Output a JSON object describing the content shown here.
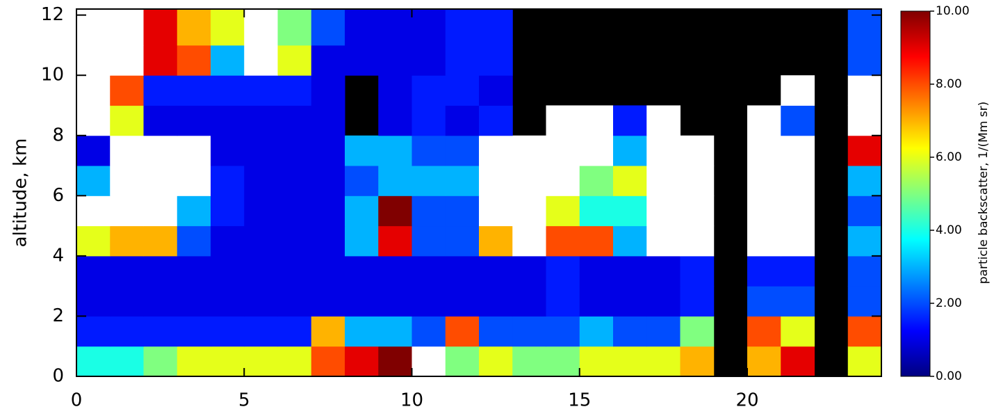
{
  "chart_data": {
    "type": "heatmap",
    "y_label": "altitude, km",
    "colorbar_label": "particle backscatter, 1/(Mm sr)",
    "xbins": [
      0,
      1,
      2,
      3,
      4,
      5,
      6,
      7,
      8,
      9,
      10,
      11,
      12,
      13,
      14,
      15,
      16,
      17,
      18,
      19,
      20,
      21,
      22,
      23,
      24
    ],
    "ybins": [
      0,
      1,
      2,
      3,
      4,
      5,
      6,
      7,
      8,
      9,
      10,
      11,
      12.2
    ],
    "z": [
      [
        4,
        4,
        5,
        6,
        6,
        6,
        6,
        8,
        9,
        10,
        12,
        5,
        6,
        5,
        5,
        6,
        6,
        6,
        7,
        null,
        7,
        9,
        null,
        6
      ],
      [
        1.5,
        1.5,
        1.5,
        1.5,
        1.5,
        1.5,
        1.5,
        7,
        3,
        3,
        2,
        8,
        2,
        2,
        2,
        3,
        2,
        2,
        5,
        null,
        8,
        6,
        null,
        8
      ],
      [
        1,
        1,
        1,
        1,
        1,
        1,
        1,
        1,
        1,
        1,
        1,
        1,
        1,
        1,
        1.5,
        1,
        1,
        1,
        1.5,
        null,
        2,
        2,
        null,
        2
      ],
      [
        1,
        1,
        1,
        1,
        1,
        1,
        1,
        1,
        1,
        1,
        1,
        1,
        1,
        1,
        1.5,
        1,
        1,
        1,
        1.5,
        null,
        1.5,
        1.5,
        null,
        2
      ],
      [
        6,
        7,
        7,
        2,
        1,
        1,
        1,
        1,
        3,
        9,
        2,
        2,
        7,
        12,
        8,
        8,
        3,
        12,
        12,
        null,
        12,
        12,
        null,
        3
      ],
      [
        12,
        12,
        12,
        3,
        1.5,
        1,
        1,
        1,
        3,
        10,
        2,
        2,
        12,
        12,
        6,
        4,
        4,
        12,
        12,
        null,
        12,
        12,
        null,
        2
      ],
      [
        3,
        12,
        12,
        12,
        1.5,
        1,
        1,
        1,
        2,
        3,
        3,
        3,
        12,
        12,
        12,
        5,
        6,
        12,
        12,
        null,
        12,
        12,
        null,
        3
      ],
      [
        1,
        12,
        12,
        12,
        1,
        1,
        1,
        1,
        3,
        3,
        2,
        2,
        12,
        12,
        12,
        12,
        3,
        12,
        12,
        null,
        12,
        12,
        null,
        9
      ],
      [
        12,
        6,
        1,
        1,
        1,
        1,
        1,
        1,
        null,
        1,
        1.5,
        1,
        1.5,
        null,
        12,
        12,
        1.5,
        12,
        null,
        null,
        12,
        2,
        null,
        12
      ],
      [
        12,
        8,
        1.5,
        1.5,
        1.5,
        1.5,
        1.5,
        1,
        null,
        1,
        1.5,
        1.5,
        1,
        null,
        null,
        null,
        null,
        null,
        null,
        null,
        null,
        12,
        null,
        12
      ],
      [
        12,
        12,
        9,
        8,
        3,
        12,
        6,
        1,
        1,
        1,
        1,
        1.5,
        1.5,
        null,
        null,
        null,
        null,
        null,
        null,
        null,
        null,
        null,
        null,
        2
      ],
      [
        12,
        12,
        9,
        7,
        6,
        12,
        5,
        2,
        1,
        1,
        1,
        1.5,
        1.5,
        null,
        null,
        null,
        null,
        null,
        null,
        null,
        null,
        null,
        null,
        2
      ]
    ],
    "colormap": "jet",
    "over_color": "#ffffff",
    "missing_color": "#000000",
    "xlim": [
      0,
      24
    ],
    "ylim": [
      0,
      12.2
    ],
    "clim": [
      0,
      10
    ],
    "xticks": [
      0,
      5,
      10,
      15,
      20
    ],
    "yticks": [
      0,
      2,
      4,
      6,
      8,
      10,
      12
    ],
    "cticks": [
      {
        "value": 0,
        "label": "0.00"
      },
      {
        "value": 2,
        "label": "2.00"
      },
      {
        "value": 4,
        "label": "4.00"
      },
      {
        "value": 6,
        "label": "6.00"
      },
      {
        "value": 8,
        "label": "8.00"
      },
      {
        "value": 10,
        "label": "10.00"
      }
    ]
  }
}
